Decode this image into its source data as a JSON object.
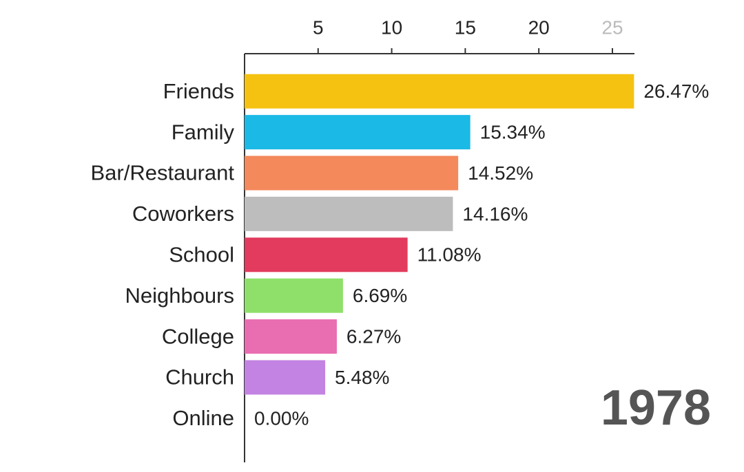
{
  "chart_data": {
    "type": "bar",
    "orientation": "horizontal",
    "categories": [
      "Friends",
      "Family",
      "Bar/Restaurant",
      "Coworkers",
      "School",
      "Neighbours",
      "College",
      "Church",
      "Online"
    ],
    "values": [
      26.47,
      15.34,
      14.52,
      14.16,
      11.08,
      6.69,
      6.27,
      5.48,
      0.0
    ],
    "value_labels": [
      "26.47%",
      "15.34%",
      "14.52%",
      "14.16%",
      "11.08%",
      "6.69%",
      "6.27%",
      "5.48%",
      "0.00%"
    ],
    "colors": [
      "#f5c211",
      "#1bb9e6",
      "#f4895b",
      "#bdbdbd",
      "#e23b5d",
      "#8fe06b",
      "#e96db1",
      "#c383e2",
      "#cccccc"
    ],
    "xlim": [
      0,
      26.5
    ],
    "xticks": [
      5,
      10,
      15,
      20,
      25
    ],
    "annotation": "1978"
  }
}
